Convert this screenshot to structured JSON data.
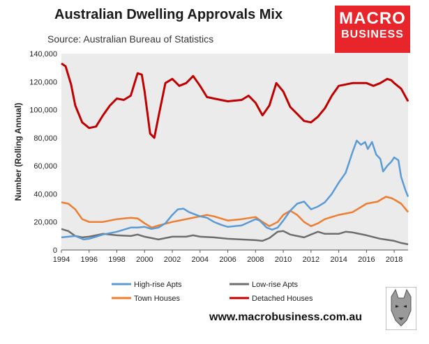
{
  "header": {
    "title": "Australian Dwelling Approvals Mix",
    "subtitle": "Source: Australian Bureau of Statistics"
  },
  "logo": {
    "line1": "MACRO",
    "line2": "BUSINESS"
  },
  "footer": {
    "url": "www.macrobusiness.com.au"
  },
  "colors": {
    "plot_bg": "#ebebeb",
    "high_rise": "#5b9bd5",
    "low_rise": "#6d6d6d",
    "town_houses": "#ed7d31",
    "detached": "#c00000"
  },
  "chart_data": {
    "type": "line",
    "ylabel": "Number (Rolling Annual)",
    "xlabel": "",
    "xlim": [
      1994,
      2019
    ],
    "ylim": [
      0,
      140000
    ],
    "x_ticks": [
      "1994",
      "1996",
      "1998",
      "2000",
      "2002",
      "2004",
      "2006",
      "2008",
      "2010",
      "2012",
      "2014",
      "2016",
      "2018"
    ],
    "y_ticks": [
      "0",
      "20,000",
      "40,000",
      "60,000",
      "80,000",
      "100,000",
      "120,000",
      "140,000"
    ],
    "legend_position": "bottom",
    "series": [
      {
        "name": "High-rise Apts",
        "key": "high_rise",
        "points": [
          [
            1994,
            9000
          ],
          [
            1995,
            10000
          ],
          [
            1995.6,
            7500
          ],
          [
            1996,
            8000
          ],
          [
            1996.5,
            9500
          ],
          [
            1997,
            11000
          ],
          [
            1998,
            13000
          ],
          [
            1999,
            16000
          ],
          [
            1999.5,
            16000
          ],
          [
            2000,
            16500
          ],
          [
            2000.5,
            15000
          ],
          [
            2001,
            16000
          ],
          [
            2001.5,
            19000
          ],
          [
            2002,
            25000
          ],
          [
            2002.4,
            29000
          ],
          [
            2002.8,
            29500
          ],
          [
            2003.2,
            27000
          ],
          [
            2004,
            24000
          ],
          [
            2004.5,
            23000
          ],
          [
            2005,
            20000
          ],
          [
            2005.5,
            18000
          ],
          [
            2006,
            16500
          ],
          [
            2007,
            17500
          ],
          [
            2008,
            22000
          ],
          [
            2008.3,
            21000
          ],
          [
            2008.8,
            16000
          ],
          [
            2009.2,
            14500
          ],
          [
            2009.6,
            16000
          ],
          [
            2010,
            21000
          ],
          [
            2010.5,
            28000
          ],
          [
            2011,
            33000
          ],
          [
            2011.5,
            34500
          ],
          [
            2012,
            29000
          ],
          [
            2012.5,
            31000
          ],
          [
            2013,
            34000
          ],
          [
            2013.5,
            40000
          ],
          [
            2014,
            48000
          ],
          [
            2014.5,
            55000
          ],
          [
            2015,
            70000
          ],
          [
            2015.3,
            78000
          ],
          [
            2015.6,
            75000
          ],
          [
            2015.9,
            77000
          ],
          [
            2016.1,
            72000
          ],
          [
            2016.4,
            77000
          ],
          [
            2016.7,
            68000
          ],
          [
            2017,
            65000
          ],
          [
            2017.2,
            56000
          ],
          [
            2017.5,
            60000
          ],
          [
            2017.8,
            63000
          ],
          [
            2018,
            66000
          ],
          [
            2018.3,
            64000
          ],
          [
            2018.5,
            52000
          ],
          [
            2018.8,
            43000
          ],
          [
            2019,
            38000
          ]
        ]
      },
      {
        "name": "Low-rise Apts",
        "key": "low_rise",
        "points": [
          [
            1994,
            15000
          ],
          [
            1994.5,
            13500
          ],
          [
            1995,
            10000
          ],
          [
            1995.5,
            9000
          ],
          [
            1996,
            9500
          ],
          [
            1997,
            11500
          ],
          [
            1998,
            10500
          ],
          [
            1999,
            10000
          ],
          [
            1999.5,
            11000
          ],
          [
            2000,
            9500
          ],
          [
            2001,
            7500
          ],
          [
            2002,
            9500
          ],
          [
            2003,
            9500
          ],
          [
            2003.5,
            10500
          ],
          [
            2004,
            9500
          ],
          [
            2005,
            9000
          ],
          [
            2006,
            8000
          ],
          [
            2007,
            7500
          ],
          [
            2008,
            7000
          ],
          [
            2008.5,
            6500
          ],
          [
            2009,
            8500
          ],
          [
            2009.6,
            13000
          ],
          [
            2010,
            13500
          ],
          [
            2010.5,
            11000
          ],
          [
            2011,
            10000
          ],
          [
            2011.5,
            9000
          ],
          [
            2012,
            11000
          ],
          [
            2012.5,
            13000
          ],
          [
            2013,
            11500
          ],
          [
            2014,
            11500
          ],
          [
            2014.5,
            13000
          ],
          [
            2015,
            12500
          ],
          [
            2016,
            10500
          ],
          [
            2017,
            8000
          ],
          [
            2018,
            6500
          ],
          [
            2018.5,
            5000
          ],
          [
            2019,
            4000
          ]
        ]
      },
      {
        "name": "Town Houses",
        "key": "town_houses",
        "points": [
          [
            1994,
            34000
          ],
          [
            1994.5,
            33000
          ],
          [
            1995,
            29000
          ],
          [
            1995.5,
            22000
          ],
          [
            1996,
            20000
          ],
          [
            1997,
            20000
          ],
          [
            1998,
            22000
          ],
          [
            1999,
            23000
          ],
          [
            1999.5,
            22500
          ],
          [
            2000,
            19000
          ],
          [
            2000.5,
            16000
          ],
          [
            2001,
            17500
          ],
          [
            2002,
            20000
          ],
          [
            2003,
            22000
          ],
          [
            2004,
            24000
          ],
          [
            2004.5,
            25000
          ],
          [
            2005,
            24000
          ],
          [
            2006,
            21000
          ],
          [
            2007,
            22000
          ],
          [
            2008,
            23500
          ],
          [
            2008.5,
            20000
          ],
          [
            2009,
            17000
          ],
          [
            2009.6,
            20000
          ],
          [
            2010,
            25000
          ],
          [
            2010.5,
            28000
          ],
          [
            2011,
            25000
          ],
          [
            2011.5,
            20000
          ],
          [
            2012,
            17000
          ],
          [
            2012.5,
            19000
          ],
          [
            2013,
            22000
          ],
          [
            2014,
            25000
          ],
          [
            2015,
            27000
          ],
          [
            2015.5,
            30000
          ],
          [
            2016,
            33000
          ],
          [
            2016.8,
            34500
          ],
          [
            2017.4,
            38000
          ],
          [
            2017.8,
            37000
          ],
          [
            2018,
            36000
          ],
          [
            2018.5,
            33000
          ],
          [
            2019,
            27000
          ]
        ]
      },
      {
        "name": "Detached Houses",
        "key": "detached",
        "points": [
          [
            1994,
            133000
          ],
          [
            1994.3,
            131000
          ],
          [
            1994.7,
            118000
          ],
          [
            1995,
            103000
          ],
          [
            1995.5,
            91000
          ],
          [
            1996,
            87000
          ],
          [
            1996.5,
            88000
          ],
          [
            1997,
            96000
          ],
          [
            1997.5,
            103000
          ],
          [
            1998,
            108000
          ],
          [
            1998.5,
            107000
          ],
          [
            1999,
            110000
          ],
          [
            1999.5,
            126000
          ],
          [
            1999.8,
            125000
          ],
          [
            2000,
            113000
          ],
          [
            2000.4,
            83000
          ],
          [
            2000.7,
            80000
          ],
          [
            2001,
            95000
          ],
          [
            2001.5,
            119000
          ],
          [
            2002,
            122000
          ],
          [
            2002.5,
            117000
          ],
          [
            2003,
            119000
          ],
          [
            2003.5,
            124000
          ],
          [
            2004,
            117000
          ],
          [
            2004.5,
            109000
          ],
          [
            2005,
            108000
          ],
          [
            2006,
            106000
          ],
          [
            2007,
            107000
          ],
          [
            2007.5,
            110000
          ],
          [
            2008,
            105000
          ],
          [
            2008.5,
            96000
          ],
          [
            2009,
            103000
          ],
          [
            2009.5,
            119000
          ],
          [
            2010,
            113000
          ],
          [
            2010.5,
            102000
          ],
          [
            2011,
            97000
          ],
          [
            2011.5,
            92000
          ],
          [
            2012,
            91000
          ],
          [
            2012.5,
            95000
          ],
          [
            2013,
            101000
          ],
          [
            2013.5,
            110000
          ],
          [
            2014,
            117000
          ],
          [
            2014.5,
            118000
          ],
          [
            2015,
            119000
          ],
          [
            2016,
            119000
          ],
          [
            2016.5,
            117000
          ],
          [
            2017,
            119000
          ],
          [
            2017.5,
            122000
          ],
          [
            2017.8,
            121000
          ],
          [
            2018,
            119000
          ],
          [
            2018.5,
            115000
          ],
          [
            2019,
            106000
          ]
        ]
      }
    ]
  }
}
